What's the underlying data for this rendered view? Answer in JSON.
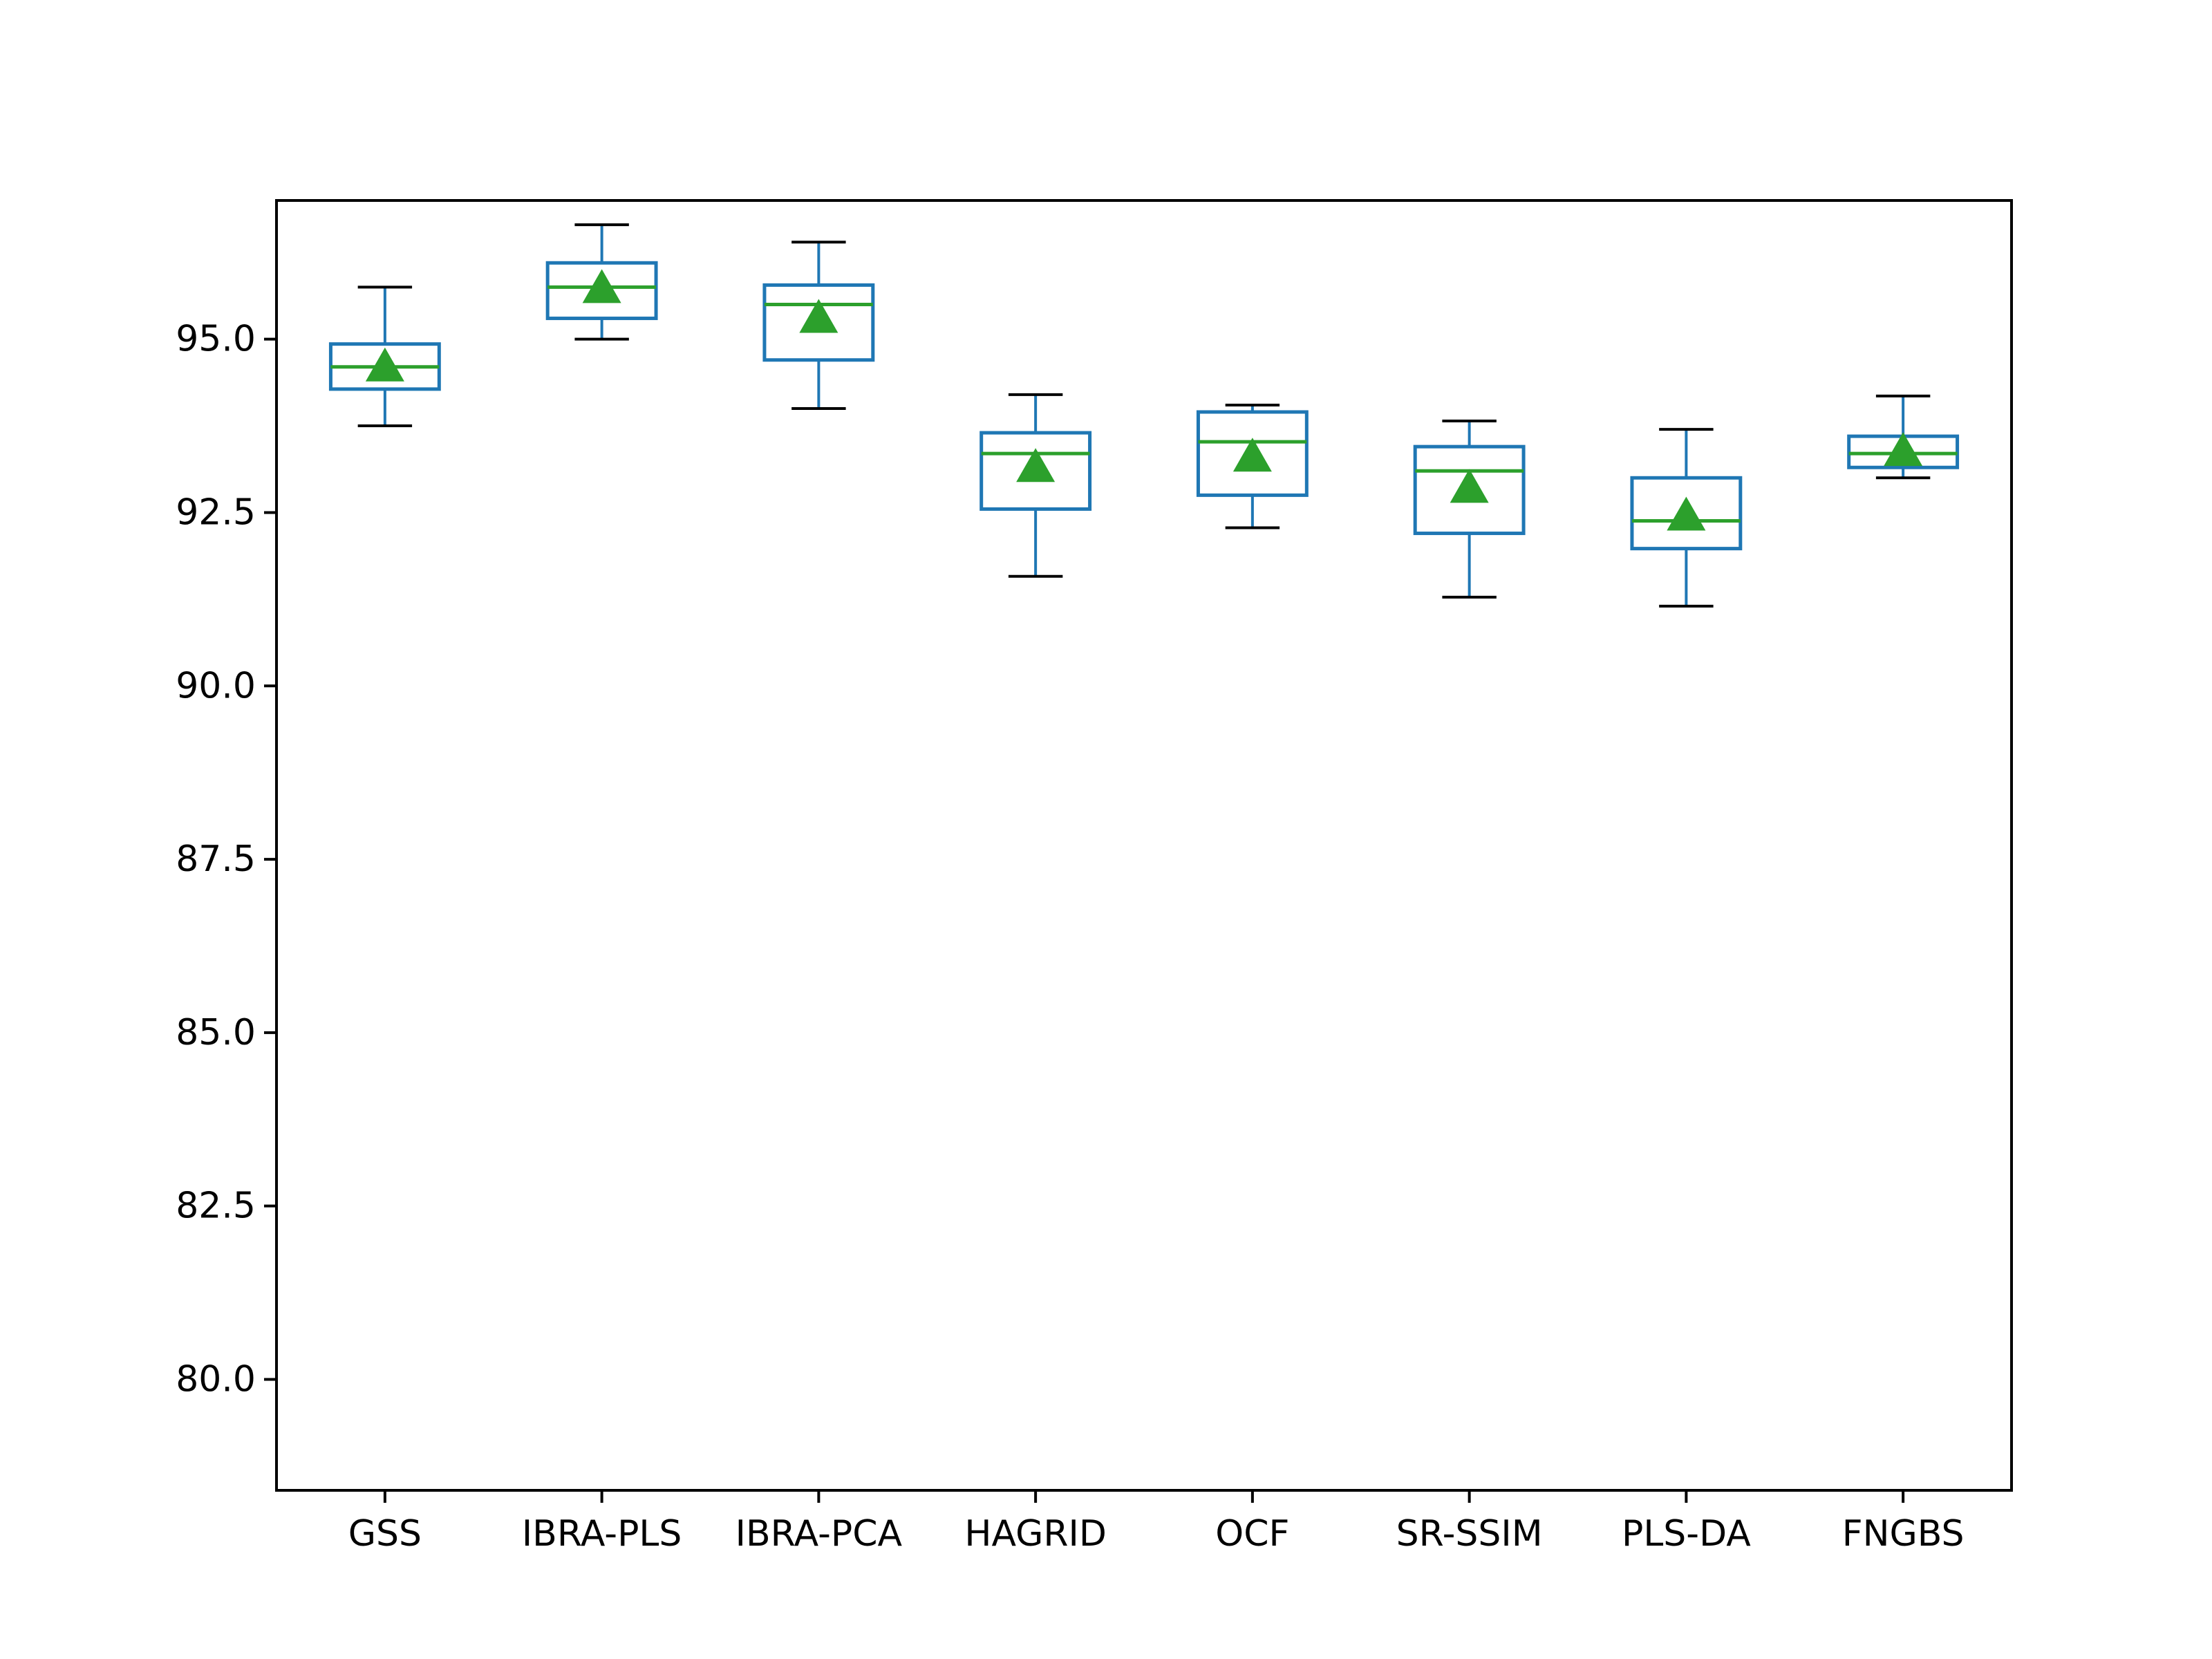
{
  "chart_data": {
    "type": "box",
    "title": "",
    "xlabel": "",
    "ylabel": "",
    "ylim": [
      78.4,
      97.0
    ],
    "yticks": [
      80.0,
      82.5,
      85.0,
      87.5,
      90.0,
      92.5,
      95.0
    ],
    "ytick_labels": [
      "80.0",
      "82.5",
      "85.0",
      "87.5",
      "90.0",
      "92.5",
      "95.0"
    ],
    "grid": false,
    "legend": "none",
    "categories": [
      "GSS",
      "IBRA-PLS",
      "IBRA-PCA",
      "HAGRID",
      "OCF",
      "SR-SSIM",
      "PLS-DA",
      "FNGBS"
    ],
    "boxes": [
      {
        "whisker_low": 93.75,
        "q1": 94.28,
        "median": 94.6,
        "q3": 94.93,
        "whisker_high": 95.75,
        "mean": 94.6
      },
      {
        "whisker_low": 95.0,
        "q1": 95.3,
        "median": 95.75,
        "q3": 96.1,
        "whisker_high": 96.65,
        "mean": 95.73
      },
      {
        "whisker_low": 94.0,
        "q1": 94.7,
        "median": 95.5,
        "q3": 95.78,
        "whisker_high": 96.4,
        "mean": 95.3
      },
      {
        "whisker_low": 91.58,
        "q1": 92.55,
        "median": 93.35,
        "q3": 93.65,
        "whisker_high": 94.2,
        "mean": 93.15
      },
      {
        "whisker_low": 92.28,
        "q1": 92.75,
        "median": 93.52,
        "q3": 93.95,
        "whisker_high": 94.05,
        "mean": 93.3
      },
      {
        "whisker_low": 91.28,
        "q1": 92.2,
        "median": 93.1,
        "q3": 93.45,
        "whisker_high": 93.82,
        "mean": 92.85
      },
      {
        "whisker_low": 91.15,
        "q1": 91.98,
        "median": 92.38,
        "q3": 93.0,
        "whisker_high": 93.7,
        "mean": 92.45
      },
      {
        "whisker_low": 93.0,
        "q1": 93.15,
        "median": 93.35,
        "q3": 93.6,
        "whisker_high": 94.18,
        "mean": 93.38
      }
    ],
    "colors": {
      "box": "#1f77b4",
      "median": "#2ca02c",
      "mean_marker": "#2ca02c",
      "cap": "#000000",
      "axes": "#000000"
    }
  }
}
